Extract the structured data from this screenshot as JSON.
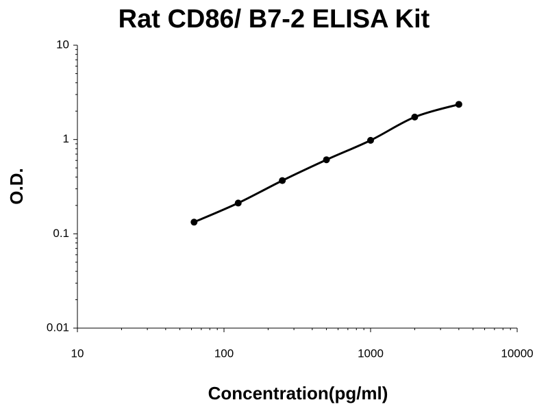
{
  "chart_data": {
    "type": "scatter",
    "title": "Rat CD86/ B7-2 ELISA Kit",
    "x_label": "Concentration(pg/ml)",
    "y_label": "O.D.",
    "x": [
      62.5,
      125,
      250,
      500,
      1000,
      2000,
      4000
    ],
    "series": [
      {
        "color": "#000000",
        "values": [
          0.133,
          0.212,
          0.367,
          0.61,
          0.98,
          1.73,
          2.36
        ]
      }
    ],
    "xlim": [
      10,
      10000
    ],
    "xticks": [
      10,
      100,
      1000,
      10000
    ],
    "ylim": [
      0.01,
      10
    ],
    "yticks": [
      0.01,
      0.1,
      1,
      10
    ],
    "log_x": true,
    "log_y": true,
    "grid": false
  }
}
